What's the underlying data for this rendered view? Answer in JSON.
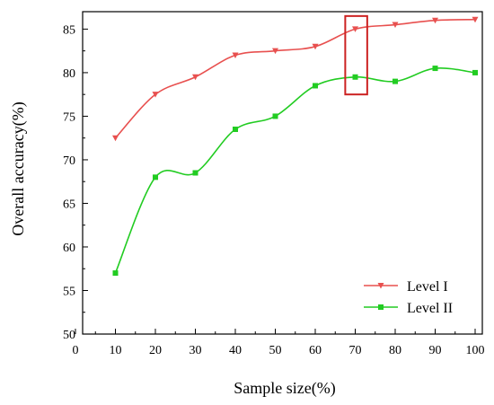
{
  "chart_data": {
    "type": "line",
    "title": "",
    "xlabel": "Sample size(%)",
    "ylabel": "Overall accuracy(%)",
    "xlim": [
      0,
      100
    ],
    "ylim": [
      50,
      87
    ],
    "x_ticks": [
      0,
      10,
      20,
      30,
      40,
      50,
      60,
      70,
      80,
      90,
      100
    ],
    "y_ticks": [
      50,
      55,
      60,
      65,
      70,
      75,
      80,
      85
    ],
    "grid": false,
    "legend_position": "bottom-right",
    "x": [
      10,
      20,
      30,
      40,
      50,
      60,
      70,
      80,
      90,
      100
    ],
    "series": [
      {
        "name": "Level I",
        "color": "#e8504f",
        "marker": "triangle-down",
        "values": [
          72.5,
          77.5,
          79.5,
          82.0,
          82.5,
          83.0,
          85.0,
          85.5,
          86.0,
          86.1
        ]
      },
      {
        "name": "Level II",
        "color": "#22cc22",
        "marker": "square",
        "values": [
          57.0,
          68.0,
          68.5,
          73.5,
          75.0,
          78.5,
          79.5,
          79.0,
          80.5,
          80.0
        ]
      }
    ],
    "annotations": [
      {
        "type": "rectangle",
        "color": "#cc2222",
        "x_range": [
          67.5,
          73
        ],
        "y_range": [
          77.5,
          86.5
        ]
      }
    ]
  }
}
